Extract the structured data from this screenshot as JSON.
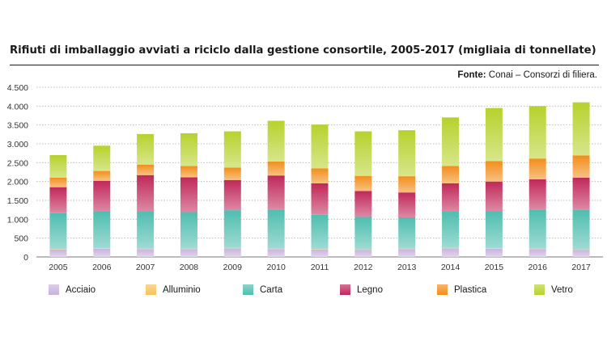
{
  "title": "Rifiuti di imballaggio avviati a riciclo dalla gestione consortile, 2005-2017 (migliaia di tonnellate)",
  "source": {
    "label": "Fonte:",
    "text": "Conai – Consorzi di filiera."
  },
  "chart_data": {
    "type": "bar",
    "stacked": true,
    "categories": [
      "2005",
      "2006",
      "2007",
      "2008",
      "2009",
      "2010",
      "2011",
      "2012",
      "2013",
      "2014",
      "2015",
      "2016",
      "2017"
    ],
    "ylim": [
      0,
      4500
    ],
    "yticks": [
      0,
      500,
      1000,
      1500,
      2000,
      2500,
      3000,
      3500,
      4000,
      4500
    ],
    "ytick_labels": [
      "0",
      "500",
      "1.000",
      "1.500",
      "2.000",
      "2.500",
      "3.000",
      "3.500",
      "4.000",
      "4.500"
    ],
    "grid": true,
    "legend_position": "bottom",
    "series": [
      {
        "name": "Acciaio",
        "color": "#c9b3dd",
        "values": [
          200,
          220,
          210,
          210,
          230,
          210,
          200,
          190,
          210,
          230,
          220,
          210,
          190
        ]
      },
      {
        "name": "Alluminio",
        "color": "#f6c25a",
        "values": [
          10,
          10,
          10,
          10,
          10,
          10,
          10,
          10,
          10,
          10,
          10,
          10,
          10
        ]
      },
      {
        "name": "Carta",
        "color": "#4fbdaf",
        "values": [
          950,
          970,
          990,
          970,
          1000,
          1040,
          910,
          860,
          830,
          960,
          990,
          1040,
          1050
        ]
      },
      {
        "name": "Legno",
        "color": "#c0285a",
        "values": [
          690,
          820,
          960,
          920,
          800,
          900,
          830,
          690,
          660,
          750,
          780,
          800,
          850
        ]
      },
      {
        "name": "Plastica",
        "color": "#f28e1c",
        "values": [
          250,
          260,
          280,
          300,
          330,
          370,
          400,
          400,
          430,
          460,
          540,
          550,
          590
        ]
      },
      {
        "name": "Vetro",
        "color": "#b6d22c",
        "values": [
          600,
          670,
          810,
          870,
          960,
          1080,
          1160,
          1180,
          1220,
          1290,
          1410,
          1390,
          1410
        ]
      }
    ]
  }
}
